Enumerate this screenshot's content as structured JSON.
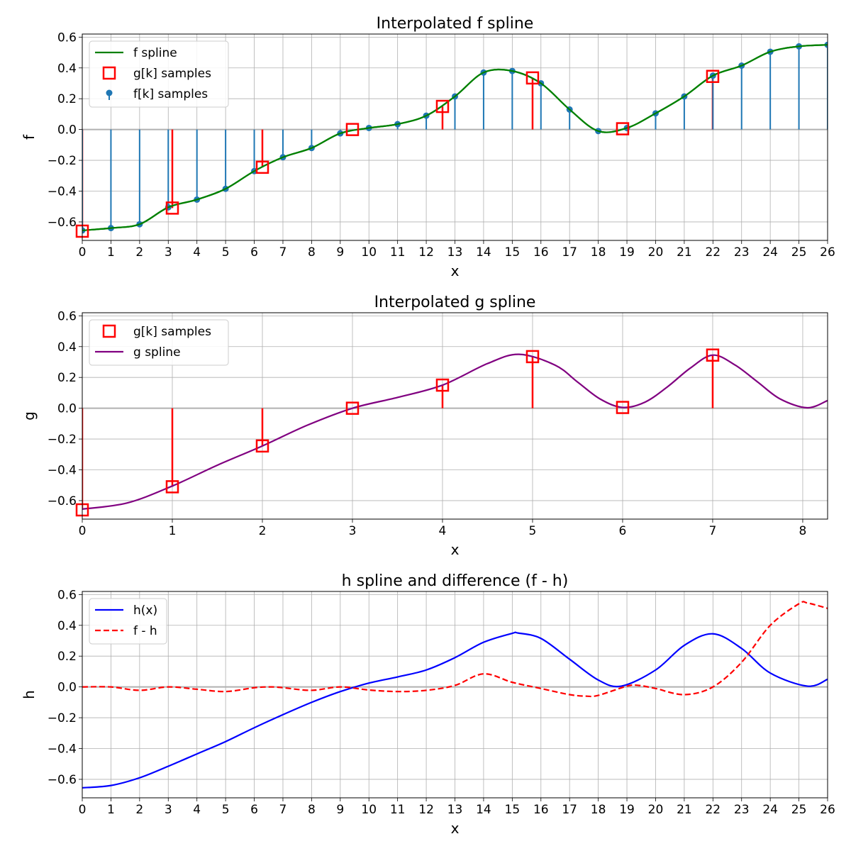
{
  "chart_data": [
    {
      "type": "line",
      "title": "Interpolated f spline",
      "xlabel": "x",
      "ylabel": "f",
      "xlim": [
        0,
        26
      ],
      "ylim": [
        -0.72,
        0.62
      ],
      "xticks": [
        0,
        1,
        2,
        3,
        4,
        5,
        6,
        7,
        8,
        9,
        10,
        11,
        12,
        13,
        14,
        15,
        16,
        17,
        18,
        19,
        20,
        21,
        22,
        23,
        24,
        25,
        26
      ],
      "yticks": [
        -0.6,
        -0.4,
        -0.2,
        0.0,
        0.2,
        0.4,
        0.6
      ],
      "grid": true,
      "legend_position": "top-left",
      "series": [
        {
          "name": "f spline",
          "kind": "line",
          "color": "#008000",
          "x": [
            0,
            1,
            2,
            3,
            4,
            5,
            6,
            7,
            8,
            9,
            10,
            11,
            12,
            13,
            14,
            15,
            16,
            17,
            18,
            19,
            20,
            21,
            22,
            23,
            24,
            25,
            26
          ],
          "y": [
            -0.655,
            -0.64,
            -0.615,
            -0.505,
            -0.455,
            -0.385,
            -0.27,
            -0.18,
            -0.12,
            -0.025,
            0.01,
            0.035,
            0.09,
            0.215,
            0.37,
            0.38,
            0.3,
            0.13,
            -0.01,
            0.01,
            0.105,
            0.215,
            0.35,
            0.415,
            0.505,
            0.54,
            0.55
          ]
        },
        {
          "name": "g[k] samples",
          "kind": "stem-square",
          "color": "#ff0000",
          "x": [
            0,
            3.1416,
            6.2832,
            9.4248,
            12.5664,
            15.708,
            18.8496,
            21.9911
          ],
          "y": [
            -0.66,
            -0.51,
            -0.245,
            0.0,
            0.15,
            0.335,
            0.005,
            0.345
          ]
        },
        {
          "name": "f[k] samples",
          "kind": "stem-dot",
          "color": "#1f77b4",
          "x": [
            0,
            1,
            2,
            3,
            4,
            5,
            6,
            7,
            8,
            9,
            10,
            11,
            12,
            13,
            14,
            15,
            16,
            17,
            18,
            19,
            20,
            21,
            22,
            23,
            24,
            25,
            26
          ],
          "y": [
            -0.655,
            -0.64,
            -0.615,
            -0.505,
            -0.455,
            -0.385,
            -0.27,
            -0.18,
            -0.12,
            -0.025,
            0.01,
            0.035,
            0.09,
            0.215,
            0.37,
            0.38,
            0.3,
            0.13,
            -0.01,
            0.01,
            0.105,
            0.215,
            0.35,
            0.415,
            0.505,
            0.54,
            0.55
          ]
        }
      ]
    },
    {
      "type": "line",
      "title": "Interpolated g spline",
      "xlabel": "x",
      "ylabel": "g",
      "xlim": [
        0,
        8.276
      ],
      "ylim": [
        -0.72,
        0.62
      ],
      "xticks": [
        0,
        1,
        2,
        3,
        4,
        5,
        6,
        7,
        8
      ],
      "yticks": [
        -0.6,
        -0.4,
        -0.2,
        0.0,
        0.2,
        0.4,
        0.6
      ],
      "grid": true,
      "legend_position": "top-left",
      "series": [
        {
          "name": "g[k] samples",
          "kind": "stem-square",
          "color": "#ff0000",
          "x": [
            0,
            1,
            2,
            3,
            4,
            5,
            6,
            7
          ],
          "y": [
            -0.66,
            -0.51,
            -0.245,
            0.0,
            0.15,
            0.335,
            0.005,
            0.345
          ]
        },
        {
          "name": "g spline",
          "kind": "line",
          "color": "#800080",
          "x": [
            0,
            0.5,
            1,
            1.5,
            2,
            2.5,
            3,
            3.5,
            4,
            4.5,
            4.85,
            5.25,
            5.5,
            5.75,
            6,
            6.25,
            6.5,
            6.75,
            7,
            7.25,
            7.5,
            7.75,
            8.05,
            8.276
          ],
          "y": [
            -0.655,
            -0.615,
            -0.505,
            -0.37,
            -0.245,
            -0.11,
            0.0,
            0.07,
            0.15,
            0.29,
            0.35,
            0.28,
            0.17,
            0.06,
            0.005,
            0.04,
            0.14,
            0.26,
            0.345,
            0.28,
            0.17,
            0.06,
            0.003,
            0.05
          ]
        }
      ]
    },
    {
      "type": "line",
      "title": "h spline and difference (f - h)",
      "xlabel": "x",
      "ylabel": "h",
      "xlim": [
        0,
        26
      ],
      "ylim": [
        -0.72,
        0.62
      ],
      "xticks": [
        0,
        1,
        2,
        3,
        4,
        5,
        6,
        7,
        8,
        9,
        10,
        11,
        12,
        13,
        14,
        15,
        16,
        17,
        18,
        19,
        20,
        21,
        22,
        23,
        24,
        25,
        26
      ],
      "yticks": [
        -0.6,
        -0.4,
        -0.2,
        0.0,
        0.2,
        0.4,
        0.6
      ],
      "grid": true,
      "legend_position": "top-left",
      "series": [
        {
          "name": "h(x)",
          "kind": "line",
          "color": "#0000ff",
          "x": [
            0,
            1,
            2,
            3,
            4,
            5,
            6,
            7,
            8,
            9,
            10,
            11,
            12,
            13,
            14,
            15,
            15.2,
            16,
            17,
            18,
            18.8,
            20,
            21,
            22,
            23,
            24,
            25.3,
            26
          ],
          "y": [
            -0.655,
            -0.64,
            -0.59,
            -0.515,
            -0.435,
            -0.355,
            -0.265,
            -0.18,
            -0.1,
            -0.03,
            0.025,
            0.065,
            0.11,
            0.19,
            0.29,
            0.348,
            0.35,
            0.315,
            0.18,
            0.045,
            0.005,
            0.11,
            0.27,
            0.345,
            0.25,
            0.09,
            0.005,
            0.05
          ]
        },
        {
          "name": "f - h",
          "kind": "dashed",
          "color": "#ff0000",
          "x": [
            0,
            1,
            2,
            3,
            4,
            5,
            6,
            6.6,
            7,
            8,
            9,
            10,
            11,
            12,
            13,
            14,
            15,
            16,
            17,
            17.6,
            18,
            19,
            19.4,
            20,
            21,
            22,
            23,
            24,
            25,
            25.3,
            26
          ],
          "y": [
            0,
            0,
            -0.022,
            0,
            -0.015,
            -0.03,
            -0.005,
            0,
            -0.005,
            -0.022,
            0,
            -0.02,
            -0.03,
            -0.022,
            0.01,
            0.085,
            0.03,
            -0.01,
            -0.05,
            -0.06,
            -0.055,
            0.005,
            0.01,
            -0.01,
            -0.05,
            0.0,
            0.16,
            0.4,
            0.54,
            0.545,
            0.51
          ]
        }
      ]
    }
  ]
}
